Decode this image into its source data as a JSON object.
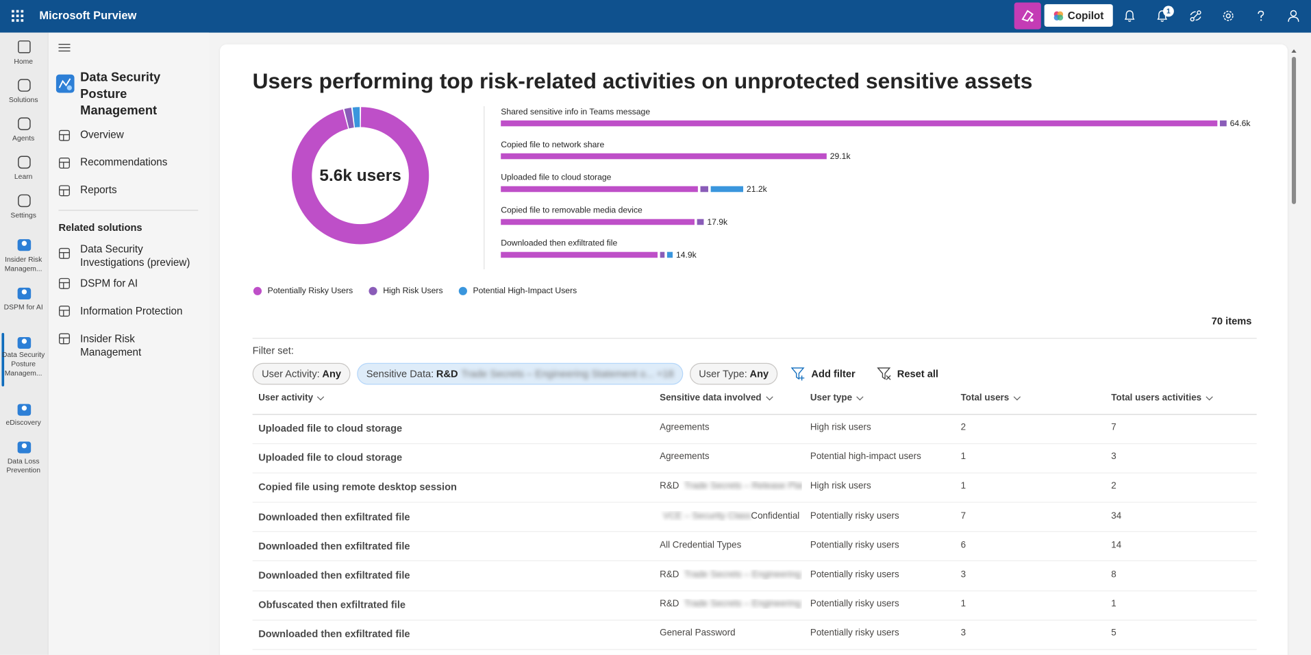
{
  "header": {
    "app_name": "Microsoft Purview",
    "copilot": "Copilot",
    "notification_count": 1
  },
  "rail": [
    {
      "label": "Home"
    },
    {
      "label": "Solutions"
    },
    {
      "label": "Agents"
    },
    {
      "label": "Learn"
    },
    {
      "label": "Settings"
    },
    {
      "label": "Insider Risk Managem..."
    },
    {
      "label": "DSPM for AI"
    },
    {
      "label": "Data Security Posture Managem...",
      "active": true
    },
    {
      "label": "eDiscovery"
    },
    {
      "label": "Data Loss Prevention"
    }
  ],
  "nav": {
    "title": "Data Security Posture Management",
    "items": [
      "Overview",
      "Recommendations",
      "Reports"
    ],
    "related_heading": "Related solutions",
    "related": [
      "Data Security Investigations (preview)",
      "DSPM for AI",
      "Information Protection",
      "Insider Risk Management"
    ]
  },
  "chart_data": {
    "type": "bar",
    "orientation": "horizontal",
    "stacked": true,
    "legend": true,
    "title": "Users performing top risk-related activities on unprotected sensitive assets",
    "categories": [
      "Shared sensitive info in Teams message",
      "Copied file to network share",
      "Uploaded file to cloud storage",
      "Copied file to removable media device",
      "Downloaded then exfiltrated file"
    ],
    "series": [
      {
        "name": "Potentially Risky Users",
        "color": "#be4fc8",
        "values": [
          64000,
          29100,
          17600,
          17300,
          14000
        ]
      },
      {
        "name": "High Risk Users",
        "color": "#8a5cb8",
        "values": [
          600,
          0,
          700,
          600,
          400
        ]
      },
      {
        "name": "Potential High-Impact Users",
        "color": "#3a96dd",
        "values": [
          0,
          0,
          2900,
          0,
          500
        ]
      }
    ],
    "totals": {
      "values": [
        64600,
        29100,
        21200,
        17900,
        14900
      ],
      "value_labels": [
        "64.6k",
        "29.1k",
        "21.2k",
        "17.9k",
        "14.9k"
      ]
    },
    "donut": {
      "center_label": "5.6k users",
      "values": [
        5380,
        110,
        110
      ]
    }
  },
  "table": {
    "count_label": "70 items",
    "filter_label": "Filter set:",
    "filters": [
      {
        "name": "User Activity:",
        "value": "Any"
      },
      {
        "name": "Sensitive Data:",
        "value": "R&D",
        "blurred": "Trade Secrets – Engineering Statement o... +18"
      },
      {
        "name": "User Type:",
        "value": "Any"
      }
    ],
    "actions": [
      "Add filter",
      "Reset all"
    ],
    "columns": [
      "User activity",
      "Sensitive data involved",
      "User type",
      "Total users",
      "Total users activities"
    ],
    "rows": [
      [
        "Uploaded file to cloud storage",
        [
          {
            "text": "Agreements",
            "blurred": false
          }
        ],
        "High risk users",
        2,
        7
      ],
      [
        "Uploaded file to cloud storage",
        [
          {
            "text": "Agreements",
            "blurred": false
          }
        ],
        "Potential high-impact users",
        1,
        3
      ],
      [
        "Copied file using remote desktop session",
        [
          {
            "text": "R&D",
            "blurred": false
          },
          {
            "text": "Trade Secrets – Release Plan VP...",
            "blurred": true
          }
        ],
        "High risk users",
        1,
        2
      ],
      [
        "Downloaded then exfiltrated file",
        [
          {
            "text": "VCE – Security Class",
            "blurred": true
          },
          {
            "text": "Confidential",
            "blurred": false
          }
        ],
        "Potentially risky users",
        7,
        34
      ],
      [
        "Downloaded then exfiltrated file",
        [
          {
            "text": "All Credential Types",
            "blurred": false
          }
        ],
        "Potentially risky users",
        6,
        14
      ],
      [
        "Downloaded then exfiltrated file",
        [
          {
            "text": "R&D",
            "blurred": false
          },
          {
            "text": "Trade Secrets – Engineering Sta...",
            "blurred": true
          }
        ],
        "Potentially risky users",
        3,
        8
      ],
      [
        "Obfuscated then exfiltrated file",
        [
          {
            "text": "R&D",
            "blurred": false
          },
          {
            "text": "Trade Secrets – Engineering Sta...",
            "blurred": true
          }
        ],
        "Potentially risky users",
        1,
        1
      ],
      [
        "Downloaded then exfiltrated file",
        [
          {
            "text": "General Password",
            "blurred": false
          }
        ],
        "Potentially risky users",
        3,
        5
      ]
    ]
  }
}
